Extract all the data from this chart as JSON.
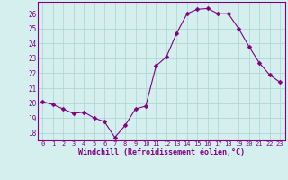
{
  "x": [
    0,
    1,
    2,
    3,
    4,
    5,
    6,
    7,
    8,
    9,
    10,
    11,
    12,
    13,
    14,
    15,
    16,
    17,
    18,
    19,
    20,
    21,
    22,
    23
  ],
  "y": [
    20.1,
    19.9,
    19.6,
    19.3,
    19.4,
    19.0,
    18.75,
    17.7,
    18.5,
    19.6,
    19.8,
    22.5,
    23.1,
    24.7,
    26.0,
    26.3,
    26.35,
    26.0,
    26.0,
    25.0,
    23.8,
    22.7,
    21.9,
    21.4
  ],
  "line_color": "#800080",
  "marker": "D",
  "markersize": 2.5,
  "linewidth": 0.8,
  "bg_color": "#d5efef",
  "grid_color": "#b0d8d8",
  "xlabel": "Windchill (Refroidissement éolien,°C)",
  "xlabel_color": "#800080",
  "ylabel_ticks": [
    18,
    19,
    20,
    21,
    22,
    23,
    24,
    25,
    26
  ],
  "ylim": [
    17.5,
    26.8
  ],
  "xlim": [
    -0.5,
    23.5
  ],
  "tick_color": "#800080",
  "xtick_fontsize": 5.0,
  "ytick_fontsize": 5.5,
  "xlabel_fontsize": 6.0
}
